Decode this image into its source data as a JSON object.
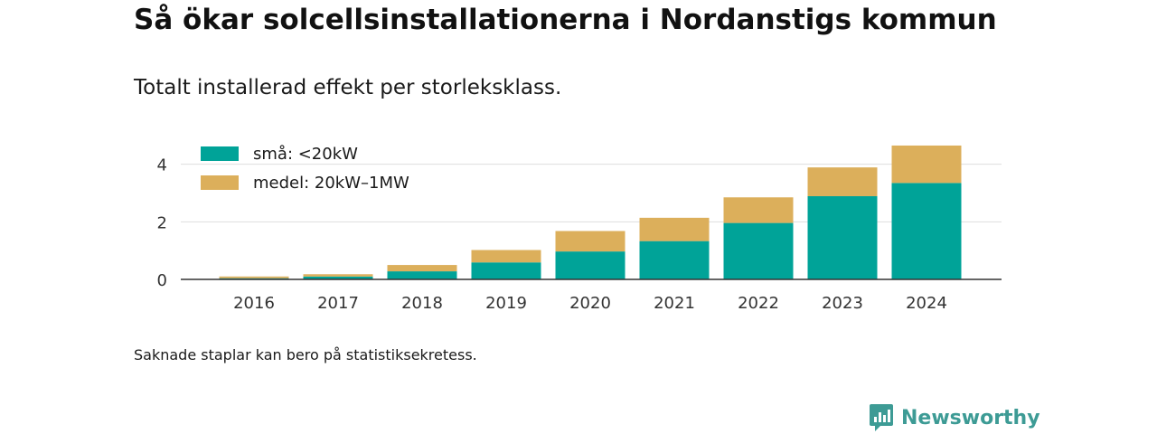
{
  "title": "Så ökar solcellsinstallationerna i Nordanstigs kommun",
  "subtitle": "Totalt installerad effekt per storleksklass.",
  "note": "Saknade staplar kan bero på statistiksekretess.",
  "brand": {
    "name": "Newsworthy",
    "icon": "newsworthy-logo-icon",
    "color": "#3d9b95"
  },
  "chart_data": {
    "type": "bar",
    "stacked": true,
    "categories": [
      "2016",
      "2017",
      "2018",
      "2019",
      "2020",
      "2021",
      "2022",
      "2023",
      "2024"
    ],
    "series": [
      {
        "name": "små: <20kW",
        "color": "#00a398",
        "values": [
          0.04,
          0.1,
          0.28,
          0.59,
          0.97,
          1.33,
          1.96,
          2.89,
          3.35
        ]
      },
      {
        "name": "medel: 20kW–1MW",
        "color": "#dcaf5b",
        "values": [
          0.06,
          0.08,
          0.22,
          0.43,
          0.71,
          0.81,
          0.89,
          1.0,
          1.3
        ]
      }
    ],
    "yticks": [
      0,
      2,
      4
    ],
    "ylim": [
      0,
      4.9
    ],
    "grid": true,
    "legend_position": "top-left"
  }
}
